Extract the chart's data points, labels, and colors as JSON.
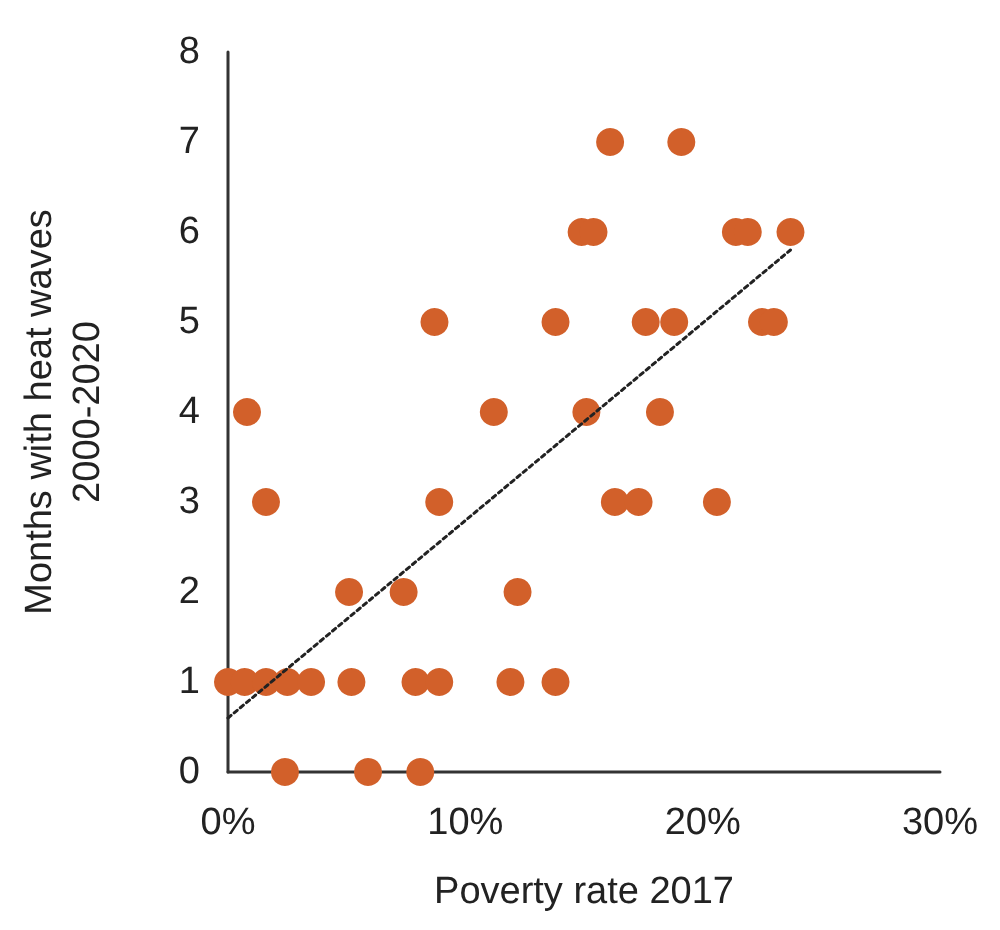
{
  "chart_data": {
    "type": "scatter",
    "xlabel": "Poverty rate 2017",
    "ylabel": "Months with heat waves\n2000-2020",
    "xlim": [
      0,
      30
    ],
    "xticks": [
      {
        "value": 0,
        "label": "0%"
      },
      {
        "value": 10,
        "label": "10%"
      },
      {
        "value": 20,
        "label": "20%"
      },
      {
        "value": 30,
        "label": "30%"
      }
    ],
    "ylim": [
      0,
      8
    ],
    "yticks": [
      0,
      1,
      2,
      3,
      4,
      5,
      6,
      7,
      8
    ],
    "grid": false,
    "marker": "circle",
    "series": [
      {
        "color": "#d2602a",
        "x": [
          0,
          0.7,
          1.6,
          2.5,
          3.5,
          5.2,
          7.9,
          8.9,
          11.9,
          13.8,
          2.4,
          5.9,
          8.1,
          5.1,
          7.4,
          12.2,
          1.6,
          8.9,
          16.3,
          17.3,
          20.6,
          0.8,
          11.2,
          15.1,
          18.2,
          8.7,
          13.8,
          17.6,
          18.8,
          22.5,
          23.0,
          14.9,
          15.4,
          21.4,
          21.9,
          23.7,
          16.1,
          19.1
        ],
        "values": [
          1,
          1,
          1,
          1,
          1,
          1,
          1,
          1,
          1,
          1,
          0,
          0,
          0,
          2,
          2,
          2,
          3,
          3,
          3,
          3,
          3,
          4,
          4,
          4,
          4,
          5,
          5,
          5,
          5,
          5,
          5,
          6,
          6,
          6,
          6,
          6,
          7,
          7
        ]
      },
      {
        "type": "line",
        "color": "#222222",
        "line_style": "dotted",
        "marker": "none",
        "x": [
          0,
          23.7
        ],
        "values": [
          0.6,
          5.8
        ]
      }
    ]
  }
}
